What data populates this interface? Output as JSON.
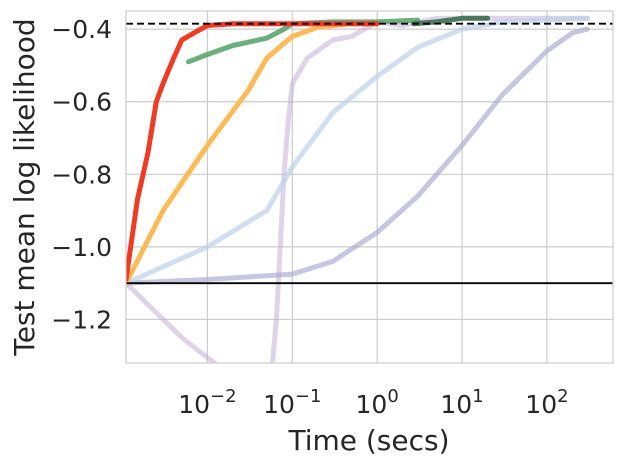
{
  "chart_data": {
    "type": "line",
    "title": "",
    "xlabel": "Time (secs)",
    "ylabel": "Test mean log likelihood",
    "xscale": "log",
    "xlim": [
      0.0011,
      600
    ],
    "ylim": [
      -1.32,
      -0.35
    ],
    "grid": true,
    "legend": "none",
    "x_ticks": [
      {
        "value": 0.01,
        "base": "10",
        "exp": "−2"
      },
      {
        "value": 0.1,
        "base": "10",
        "exp": "−1"
      },
      {
        "value": 1,
        "base": "10",
        "exp": "0"
      },
      {
        "value": 10,
        "base": "10",
        "exp": "1"
      },
      {
        "value": 100,
        "base": "10",
        "exp": "2"
      }
    ],
    "y_ticks": [
      {
        "value": -0.4,
        "label": "−0.4"
      },
      {
        "value": -0.6,
        "label": "−0.6"
      },
      {
        "value": -0.8,
        "label": "−0.8"
      },
      {
        "value": -1.0,
        "label": "−1.0"
      },
      {
        "value": -1.2,
        "label": "−1.2"
      }
    ],
    "reference_lines": [
      {
        "y": -0.385,
        "style": "dashed",
        "color": "#000000"
      },
      {
        "y": -1.1,
        "style": "solid",
        "color": "#000000"
      }
    ],
    "series": [
      {
        "color": "#c4aed8",
        "opacity": 0.55,
        "points": [
          [
            0.0011,
            -1.1
          ],
          [
            0.005,
            -1.25
          ],
          [
            0.02,
            -1.36
          ],
          [
            0.05,
            -1.5
          ],
          [
            0.065,
            -1.2
          ],
          [
            0.08,
            -0.8
          ],
          [
            0.09,
            -0.65
          ],
          [
            0.1,
            -0.55
          ],
          [
            0.15,
            -0.48
          ],
          [
            0.3,
            -0.43
          ],
          [
            0.5,
            -0.42
          ],
          [
            1,
            -0.38
          ],
          [
            2,
            -0.39
          ],
          [
            5,
            -0.37
          ],
          [
            20,
            -0.37
          ],
          [
            100,
            -0.37
          ],
          [
            300,
            -0.37
          ]
        ]
      },
      {
        "color": "#a6a9d0",
        "opacity": 0.65,
        "points": [
          [
            0.0011,
            -1.1
          ],
          [
            0.01,
            -1.09
          ],
          [
            0.1,
            -1.075
          ],
          [
            0.3,
            -1.04
          ],
          [
            1,
            -0.96
          ],
          [
            3,
            -0.86
          ],
          [
            10,
            -0.72
          ],
          [
            30,
            -0.58
          ],
          [
            100,
            -0.46
          ],
          [
            200,
            -0.41
          ],
          [
            300,
            -0.4
          ]
        ]
      },
      {
        "color": "#bcd2e8",
        "opacity": 0.7,
        "points": [
          [
            0.0011,
            -1.1
          ],
          [
            0.01,
            -1.0
          ],
          [
            0.05,
            -0.9
          ],
          [
            0.1,
            -0.78
          ],
          [
            0.3,
            -0.63
          ],
          [
            1,
            -0.53
          ],
          [
            3,
            -0.45
          ],
          [
            10,
            -0.4
          ],
          [
            30,
            -0.38
          ],
          [
            100,
            -0.375
          ],
          [
            300,
            -0.37
          ]
        ]
      },
      {
        "color": "#fdba56",
        "opacity": 1,
        "points": [
          [
            0.0011,
            -1.1
          ],
          [
            0.003,
            -0.9
          ],
          [
            0.01,
            -0.72
          ],
          [
            0.03,
            -0.57
          ],
          [
            0.05,
            -0.48
          ],
          [
            0.1,
            -0.42
          ],
          [
            0.2,
            -0.395
          ],
          [
            0.5,
            -0.385
          ],
          [
            1,
            -0.385
          ]
        ]
      },
      {
        "color": "#5aa66e",
        "opacity": 0.9,
        "points": [
          [
            0.006,
            -0.49
          ],
          [
            0.01,
            -0.47
          ],
          [
            0.02,
            -0.445
          ],
          [
            0.05,
            -0.425
          ],
          [
            0.08,
            -0.4
          ],
          [
            0.1,
            -0.385
          ],
          [
            0.3,
            -0.38
          ],
          [
            1,
            -0.38
          ],
          [
            3,
            -0.375
          ]
        ]
      },
      {
        "color": "#3a6e4e",
        "opacity": 0.9,
        "points": [
          [
            2.7,
            -0.385
          ],
          [
            5,
            -0.38
          ],
          [
            10,
            -0.37
          ],
          [
            20,
            -0.37
          ]
        ]
      },
      {
        "color": "#f03b24",
        "opacity": 1,
        "points": [
          [
            0.0011,
            -1.09
          ],
          [
            0.0015,
            -0.87
          ],
          [
            0.002,
            -0.74
          ],
          [
            0.0025,
            -0.6
          ],
          [
            0.003,
            -0.55
          ],
          [
            0.004,
            -0.48
          ],
          [
            0.005,
            -0.43
          ],
          [
            0.007,
            -0.41
          ],
          [
            0.01,
            -0.39
          ],
          [
            0.02,
            -0.385
          ],
          [
            0.1,
            -0.385
          ],
          [
            1,
            -0.385
          ]
        ]
      }
    ]
  }
}
